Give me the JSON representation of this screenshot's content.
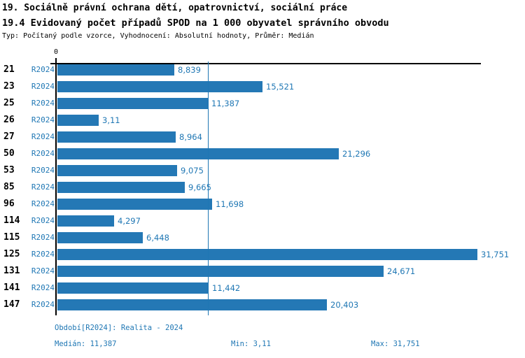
{
  "header": {
    "title_line1": "19. Sociálně právní ochrana dětí, opatrovnictví, sociální práce",
    "title_line2": "19.4 Evidovaný počet případů SPOD na 1 000 obyvatel správního obvodu",
    "subtitle": "Typ: Počítaný podle vzorce, Vyhodnocení: Absolutní hodnoty, Průměr: Medián"
  },
  "chart_data": {
    "type": "bar",
    "orientation": "horizontal",
    "series_label": "R2024",
    "categories": [
      "21",
      "23",
      "25",
      "26",
      "27",
      "50",
      "53",
      "85",
      "96",
      "114",
      "115",
      "125",
      "131",
      "141",
      "147"
    ],
    "values": [
      8.839,
      15.521,
      11.387,
      3.11,
      8.964,
      21.296,
      9.075,
      9.665,
      11.698,
      4.297,
      6.448,
      31.751,
      24.671,
      11.442,
      20.403
    ],
    "value_labels": [
      "8,839",
      "15,521",
      "11,387",
      "3,11",
      "8,964",
      "21,296",
      "9,075",
      "9,665",
      "11,698",
      "4,297",
      "6,448",
      "31,751",
      "24,671",
      "11,442",
      "20,403"
    ],
    "axis_origin_label": "0",
    "xlim": [
      0,
      32
    ],
    "median_value": 11.387,
    "min_value": 3.11,
    "max_value": 31.751,
    "median_line_value": 11.387,
    "grid": "off",
    "legend": "none",
    "bar_color": "#2478b5",
    "accent_color": "#1f77b4"
  },
  "footer": {
    "period": "Období[R2024]: Realita - 2024",
    "median": "Medián: 11,387",
    "min": "Min: 3,11",
    "max": "Max: 31,751"
  }
}
